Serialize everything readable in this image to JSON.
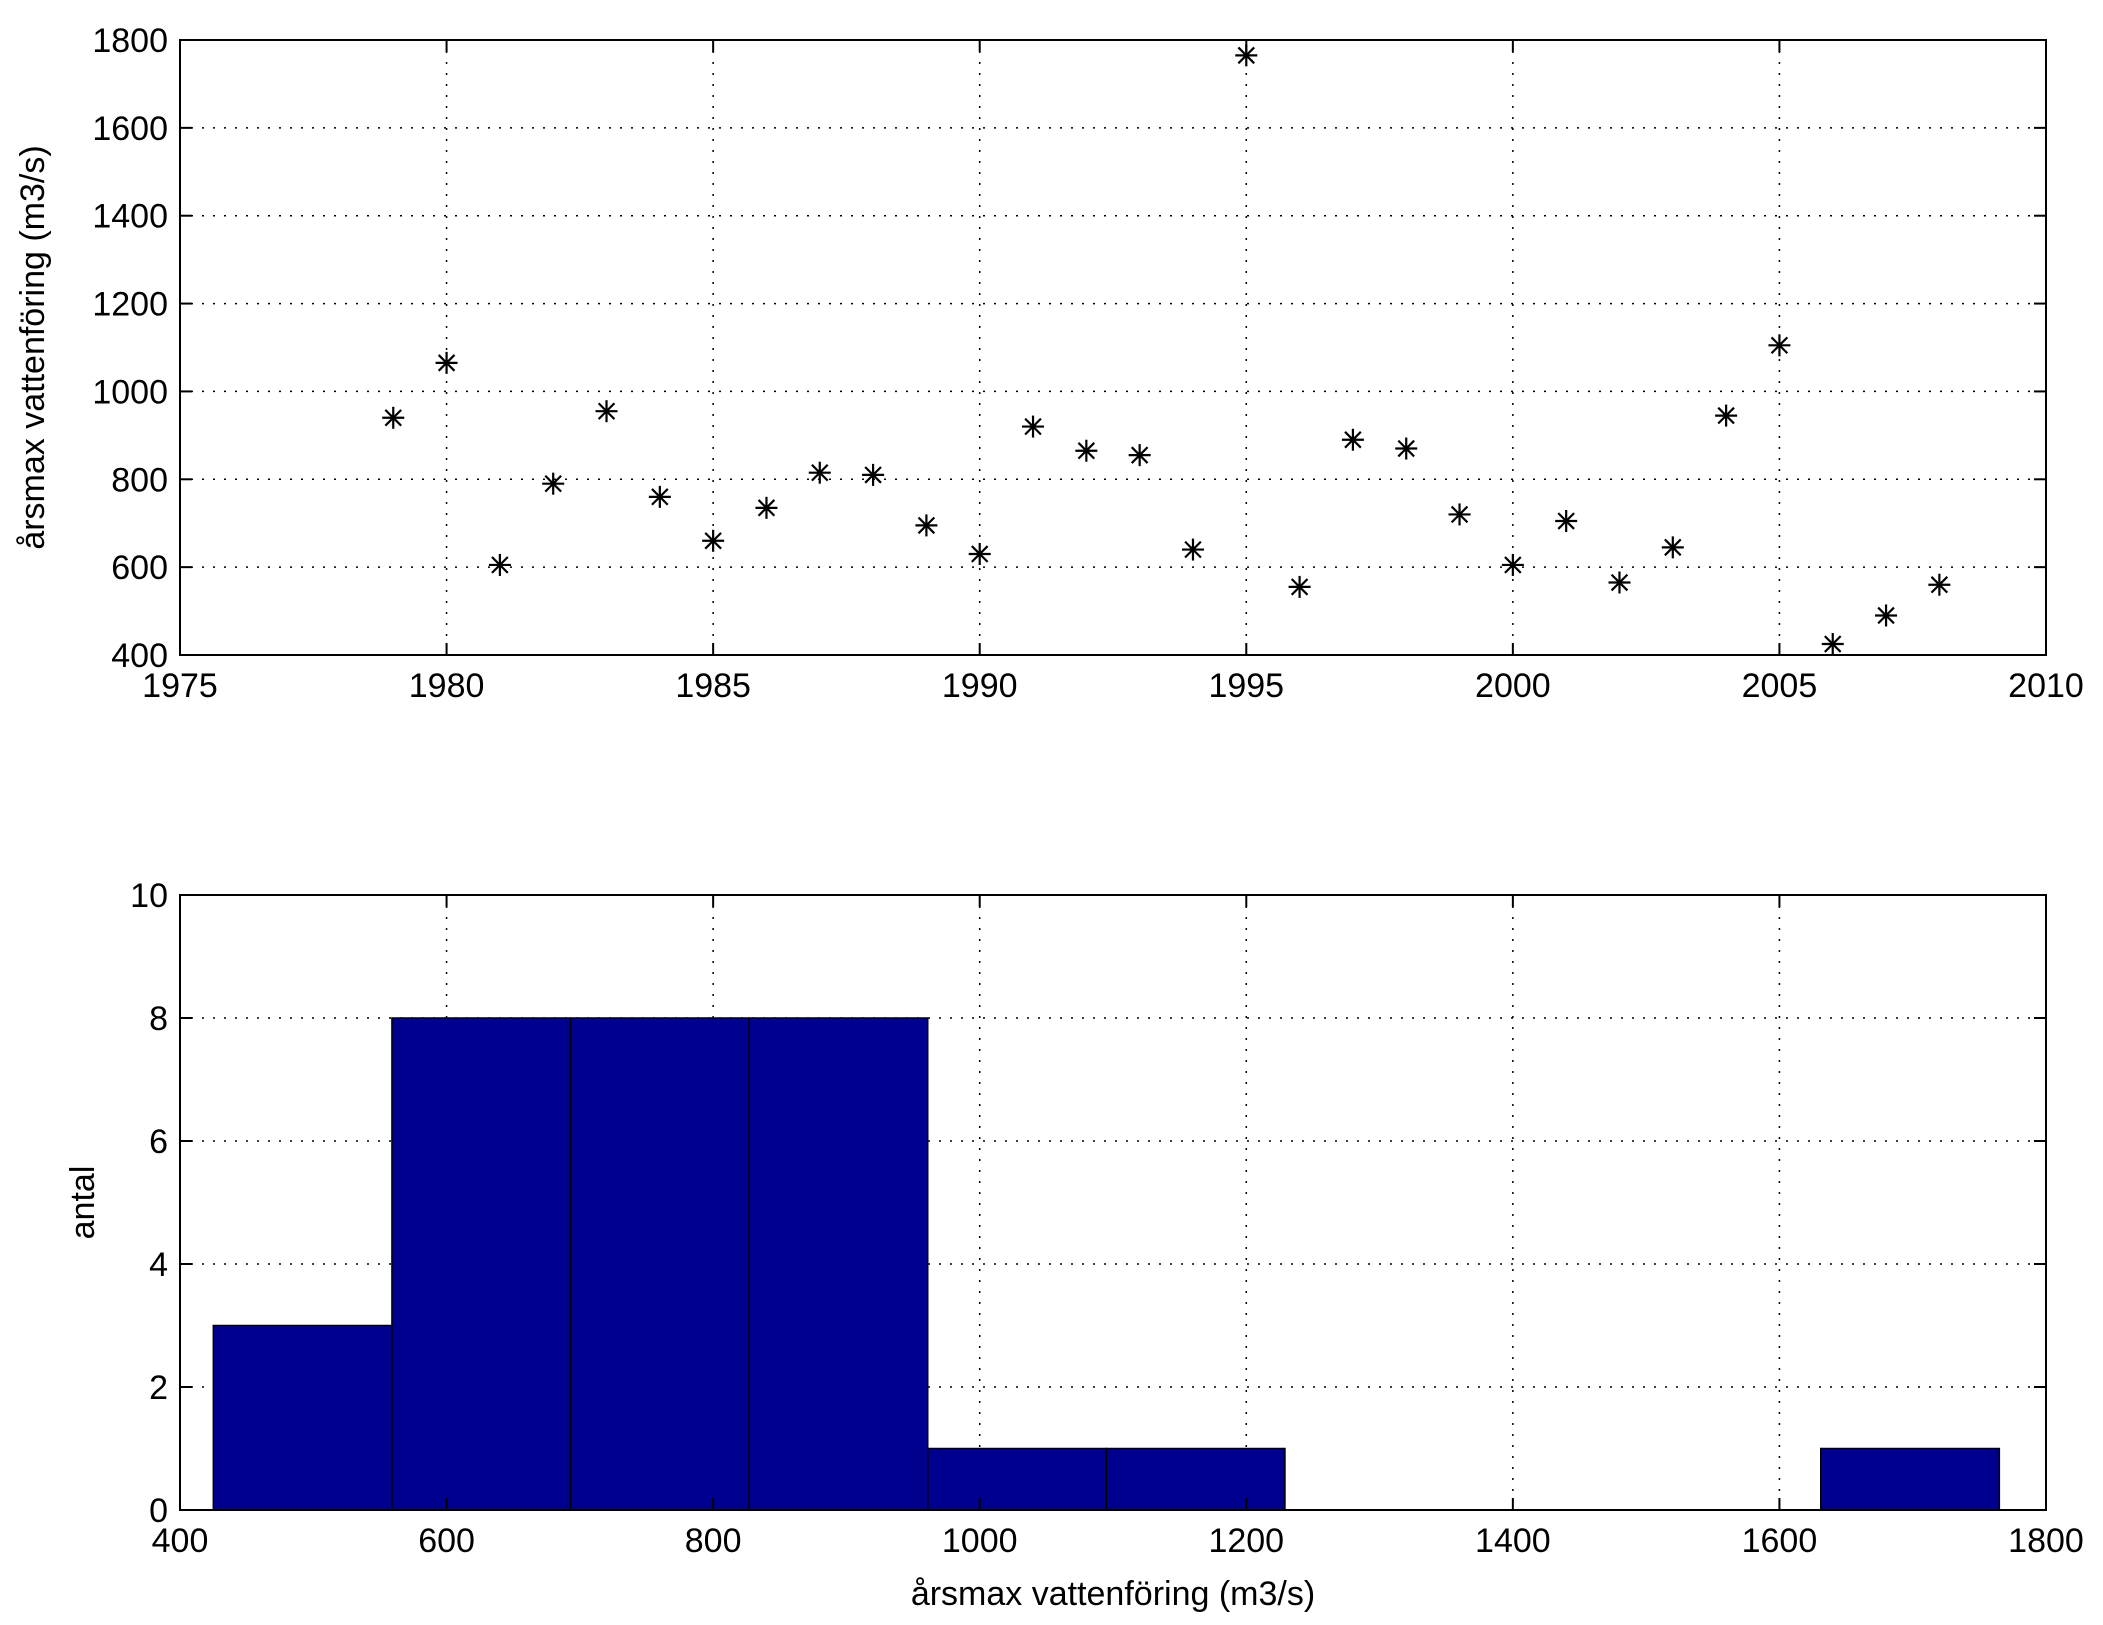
{
  "chart_data": [
    {
      "type": "scatter",
      "marker": "asterisk",
      "color": "#000000",
      "x": [
        1979,
        1980,
        1981,
        1982,
        1983,
        1984,
        1985,
        1986,
        1987,
        1988,
        1989,
        1990,
        1991,
        1992,
        1993,
        1994,
        1995,
        1996,
        1997,
        1998,
        1999,
        2000,
        2001,
        2002,
        2003,
        2004,
        2005,
        2006,
        2007,
        2008
      ],
      "y": [
        940,
        1065,
        605,
        790,
        955,
        760,
        660,
        735,
        815,
        810,
        695,
        630,
        920,
        865,
        855,
        640,
        1765,
        555,
        890,
        870,
        720,
        605,
        705,
        565,
        645,
        945,
        1105,
        425,
        490,
        560
      ],
      "xlim": [
        1975,
        2010
      ],
      "ylim": [
        400,
        1800
      ],
      "xticks": [
        "1975",
        "1980",
        "1985",
        "1990",
        "1995",
        "2000",
        "2005",
        "2010"
      ],
      "yticks": [
        "400",
        "600",
        "800",
        "1000",
        "1200",
        "1400",
        "1600",
        "1800"
      ],
      "xlabel": "",
      "ylabel": "årsmax vattenföring (m3/s)",
      "grid": true
    },
    {
      "type": "bar",
      "subtype": "histogram",
      "color": "#00008f",
      "bin_edges": [
        425,
        559,
        693,
        827,
        961,
        1095,
        1229,
        1363,
        1497,
        1631,
        1765
      ],
      "values": [
        3,
        8,
        8,
        8,
        1,
        1,
        0,
        0,
        0,
        1
      ],
      "xlim": [
        400,
        1800
      ],
      "ylim": [
        0,
        10
      ],
      "xticks": [
        "400",
        "600",
        "800",
        "1000",
        "1200",
        "1400",
        "1600",
        "1800"
      ],
      "yticks": [
        "0",
        "2",
        "4",
        "6",
        "8",
        "10"
      ],
      "xlabel": "årsmax vattenföring (m3/s)",
      "ylabel": "antal",
      "grid": true
    }
  ]
}
